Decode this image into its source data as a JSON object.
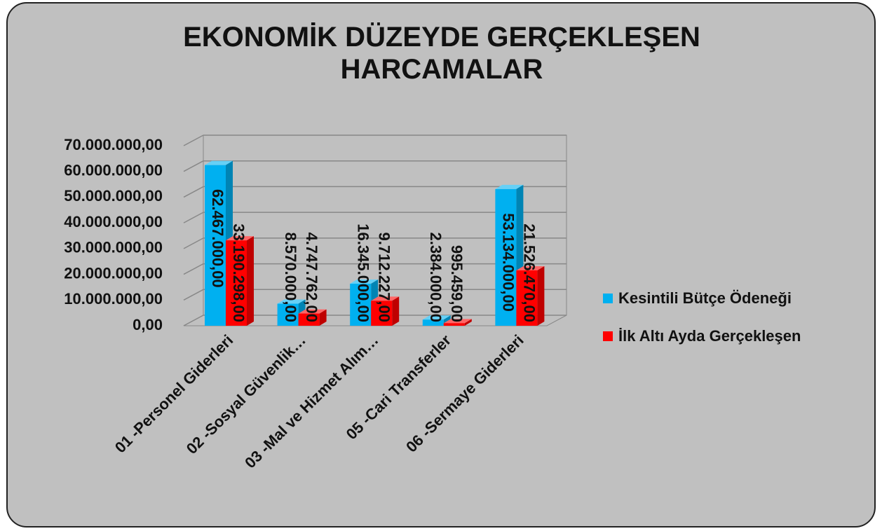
{
  "chart_data": {
    "type": "bar3d",
    "title": "EKONOMİK DÜZEYDE GERÇEKLEŞEN HARCAMALAR",
    "categories": [
      "01 -Personel Giderleri",
      "02 -Sosyal Güvenlik…",
      "03 -Mal ve Hizmet Alım…",
      "05 -Cari Transferler",
      "06 -Sermaye Giderleri"
    ],
    "series": [
      {
        "name": "Kesintili Bütçe Ödeneği",
        "color": "#00b0f0",
        "values": [
          62467000,
          8570000,
          16345000,
          2384000,
          53134000
        ],
        "value_labels": [
          "62.467.000,00",
          "8.570.000,00",
          "16.345.000,00",
          "2.384.000,00",
          "53.134.000,00"
        ]
      },
      {
        "name": "İlk Altı Ayda Gerçekleşen",
        "color": "#ff0000",
        "values": [
          33190298,
          4747762,
          9712227,
          995459,
          21526470
        ],
        "value_labels": [
          "33.190.298,00",
          "4.747.762,00",
          "9.712.227,00",
          "995.459,00",
          "21.526.470,00"
        ]
      }
    ],
    "ylim": [
      0,
      70000000
    ],
    "yticks": [
      {
        "value": 0,
        "label": "0,00"
      },
      {
        "value": 10000000,
        "label": "10.000.000,00"
      },
      {
        "value": 20000000,
        "label": "20.000.000,00"
      },
      {
        "value": 30000000,
        "label": "30.000.000,00"
      },
      {
        "value": 40000000,
        "label": "40.000.000,00"
      },
      {
        "value": 50000000,
        "label": "50.000.000,00"
      },
      {
        "value": 60000000,
        "label": "60.000.000,00"
      },
      {
        "value": 70000000,
        "label": "70.000.000,00"
      }
    ],
    "grid": true,
    "legend": "right"
  }
}
